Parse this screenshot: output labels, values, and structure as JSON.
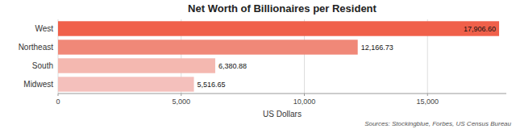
{
  "chart_data": {
    "type": "bar",
    "orientation": "horizontal",
    "title": "Net Worth of Billionaires per Resident",
    "xlabel": "US Dollars",
    "annotations": [
      "Sources: Stockingblue, Forbes, US Census Bureau"
    ],
    "categories": [
      "West",
      "Northeast",
      "South",
      "Midwest"
    ],
    "values": [
      17906.6,
      12166.73,
      6380.88,
      5516.65
    ],
    "value_labels": [
      "17,906.60",
      "12,166.73",
      "6,380.88",
      "5,516.65"
    ],
    "colors": [
      "#f0604a",
      "#f08878",
      "#f4b8b0",
      "#f4c0bc"
    ],
    "xlim": [
      0,
      18200
    ],
    "xticks": [
      0,
      {
        "value": 5000,
        "label": "5,000"
      },
      {
        "value": 10000,
        "label": "10,000"
      },
      {
        "value": 15000,
        "label": "15,000"
      }
    ],
    "grid": true,
    "data_labels": true
  }
}
